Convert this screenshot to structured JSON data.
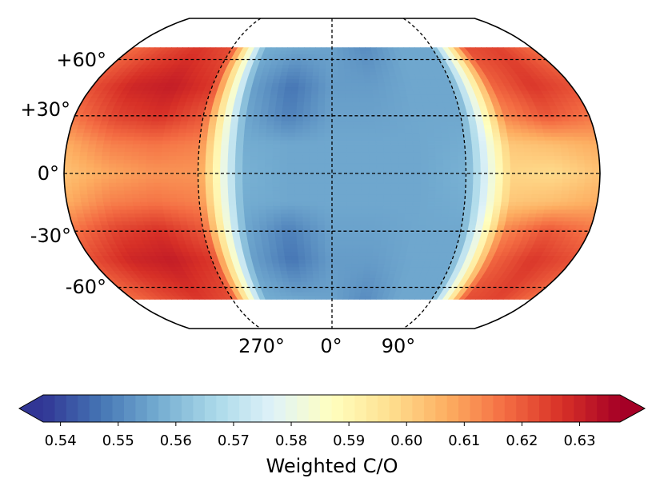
{
  "chart_data": {
    "type": "heatmap",
    "projection": "robinson",
    "title": "",
    "colorbar": {
      "label": "Weighted C/O",
      "min": 0.537,
      "max": 0.637,
      "ticks": [
        0.54,
        0.55,
        0.56,
        0.57,
        0.58,
        0.59,
        0.6,
        0.61,
        0.62,
        0.63
      ],
      "tick_labels": [
        "0.54",
        "0.55",
        "0.56",
        "0.57",
        "0.58",
        "0.59",
        "0.60",
        "0.61",
        "0.62",
        "0.63"
      ],
      "extend": "both",
      "colormap": "RdYlBu_r"
    },
    "latitude_lines": [
      60,
      30,
      0,
      -30,
      -60
    ],
    "latitude_labels": [
      "+60°",
      "+30°",
      "0°",
      "-30°",
      "-60°"
    ],
    "longitude_lines": [
      270,
      0,
      90
    ],
    "longitude_labels": [
      "270°",
      "0°",
      "90°"
    ],
    "data_lat_range": [
      -67,
      67
    ],
    "longitudes": [
      -180,
      -150,
      -120,
      -90,
      -60,
      -30,
      0,
      30,
      60,
      90,
      120,
      150,
      180
    ],
    "latitudes": [
      67,
      45,
      30,
      15,
      0,
      -15,
      -30,
      -45,
      -67
    ],
    "values": [
      [
        0.617,
        0.622,
        0.626,
        0.622,
        0.557,
        0.556,
        0.555,
        0.551,
        0.556,
        0.556,
        0.622,
        0.624,
        0.617
      ],
      [
        0.622,
        0.629,
        0.631,
        0.626,
        0.555,
        0.547,
        0.554,
        0.554,
        0.556,
        0.556,
        0.618,
        0.626,
        0.622
      ],
      [
        0.616,
        0.624,
        0.627,
        0.621,
        0.556,
        0.549,
        0.555,
        0.555,
        0.556,
        0.556,
        0.613,
        0.621,
        0.616
      ],
      [
        0.607,
        0.614,
        0.616,
        0.614,
        0.557,
        0.556,
        0.556,
        0.556,
        0.556,
        0.557,
        0.602,
        0.604,
        0.607
      ],
      [
        0.603,
        0.608,
        0.611,
        0.611,
        0.558,
        0.556,
        0.556,
        0.556,
        0.556,
        0.558,
        0.599,
        0.598,
        0.603
      ],
      [
        0.607,
        0.614,
        0.616,
        0.614,
        0.557,
        0.556,
        0.556,
        0.556,
        0.556,
        0.557,
        0.602,
        0.604,
        0.607
      ],
      [
        0.616,
        0.624,
        0.627,
        0.621,
        0.556,
        0.549,
        0.555,
        0.555,
        0.556,
        0.556,
        0.613,
        0.621,
        0.616
      ],
      [
        0.622,
        0.629,
        0.631,
        0.626,
        0.555,
        0.547,
        0.554,
        0.554,
        0.556,
        0.556,
        0.618,
        0.626,
        0.622
      ],
      [
        0.617,
        0.622,
        0.626,
        0.622,
        0.557,
        0.556,
        0.555,
        0.551,
        0.556,
        0.556,
        0.622,
        0.624,
        0.617
      ]
    ]
  }
}
